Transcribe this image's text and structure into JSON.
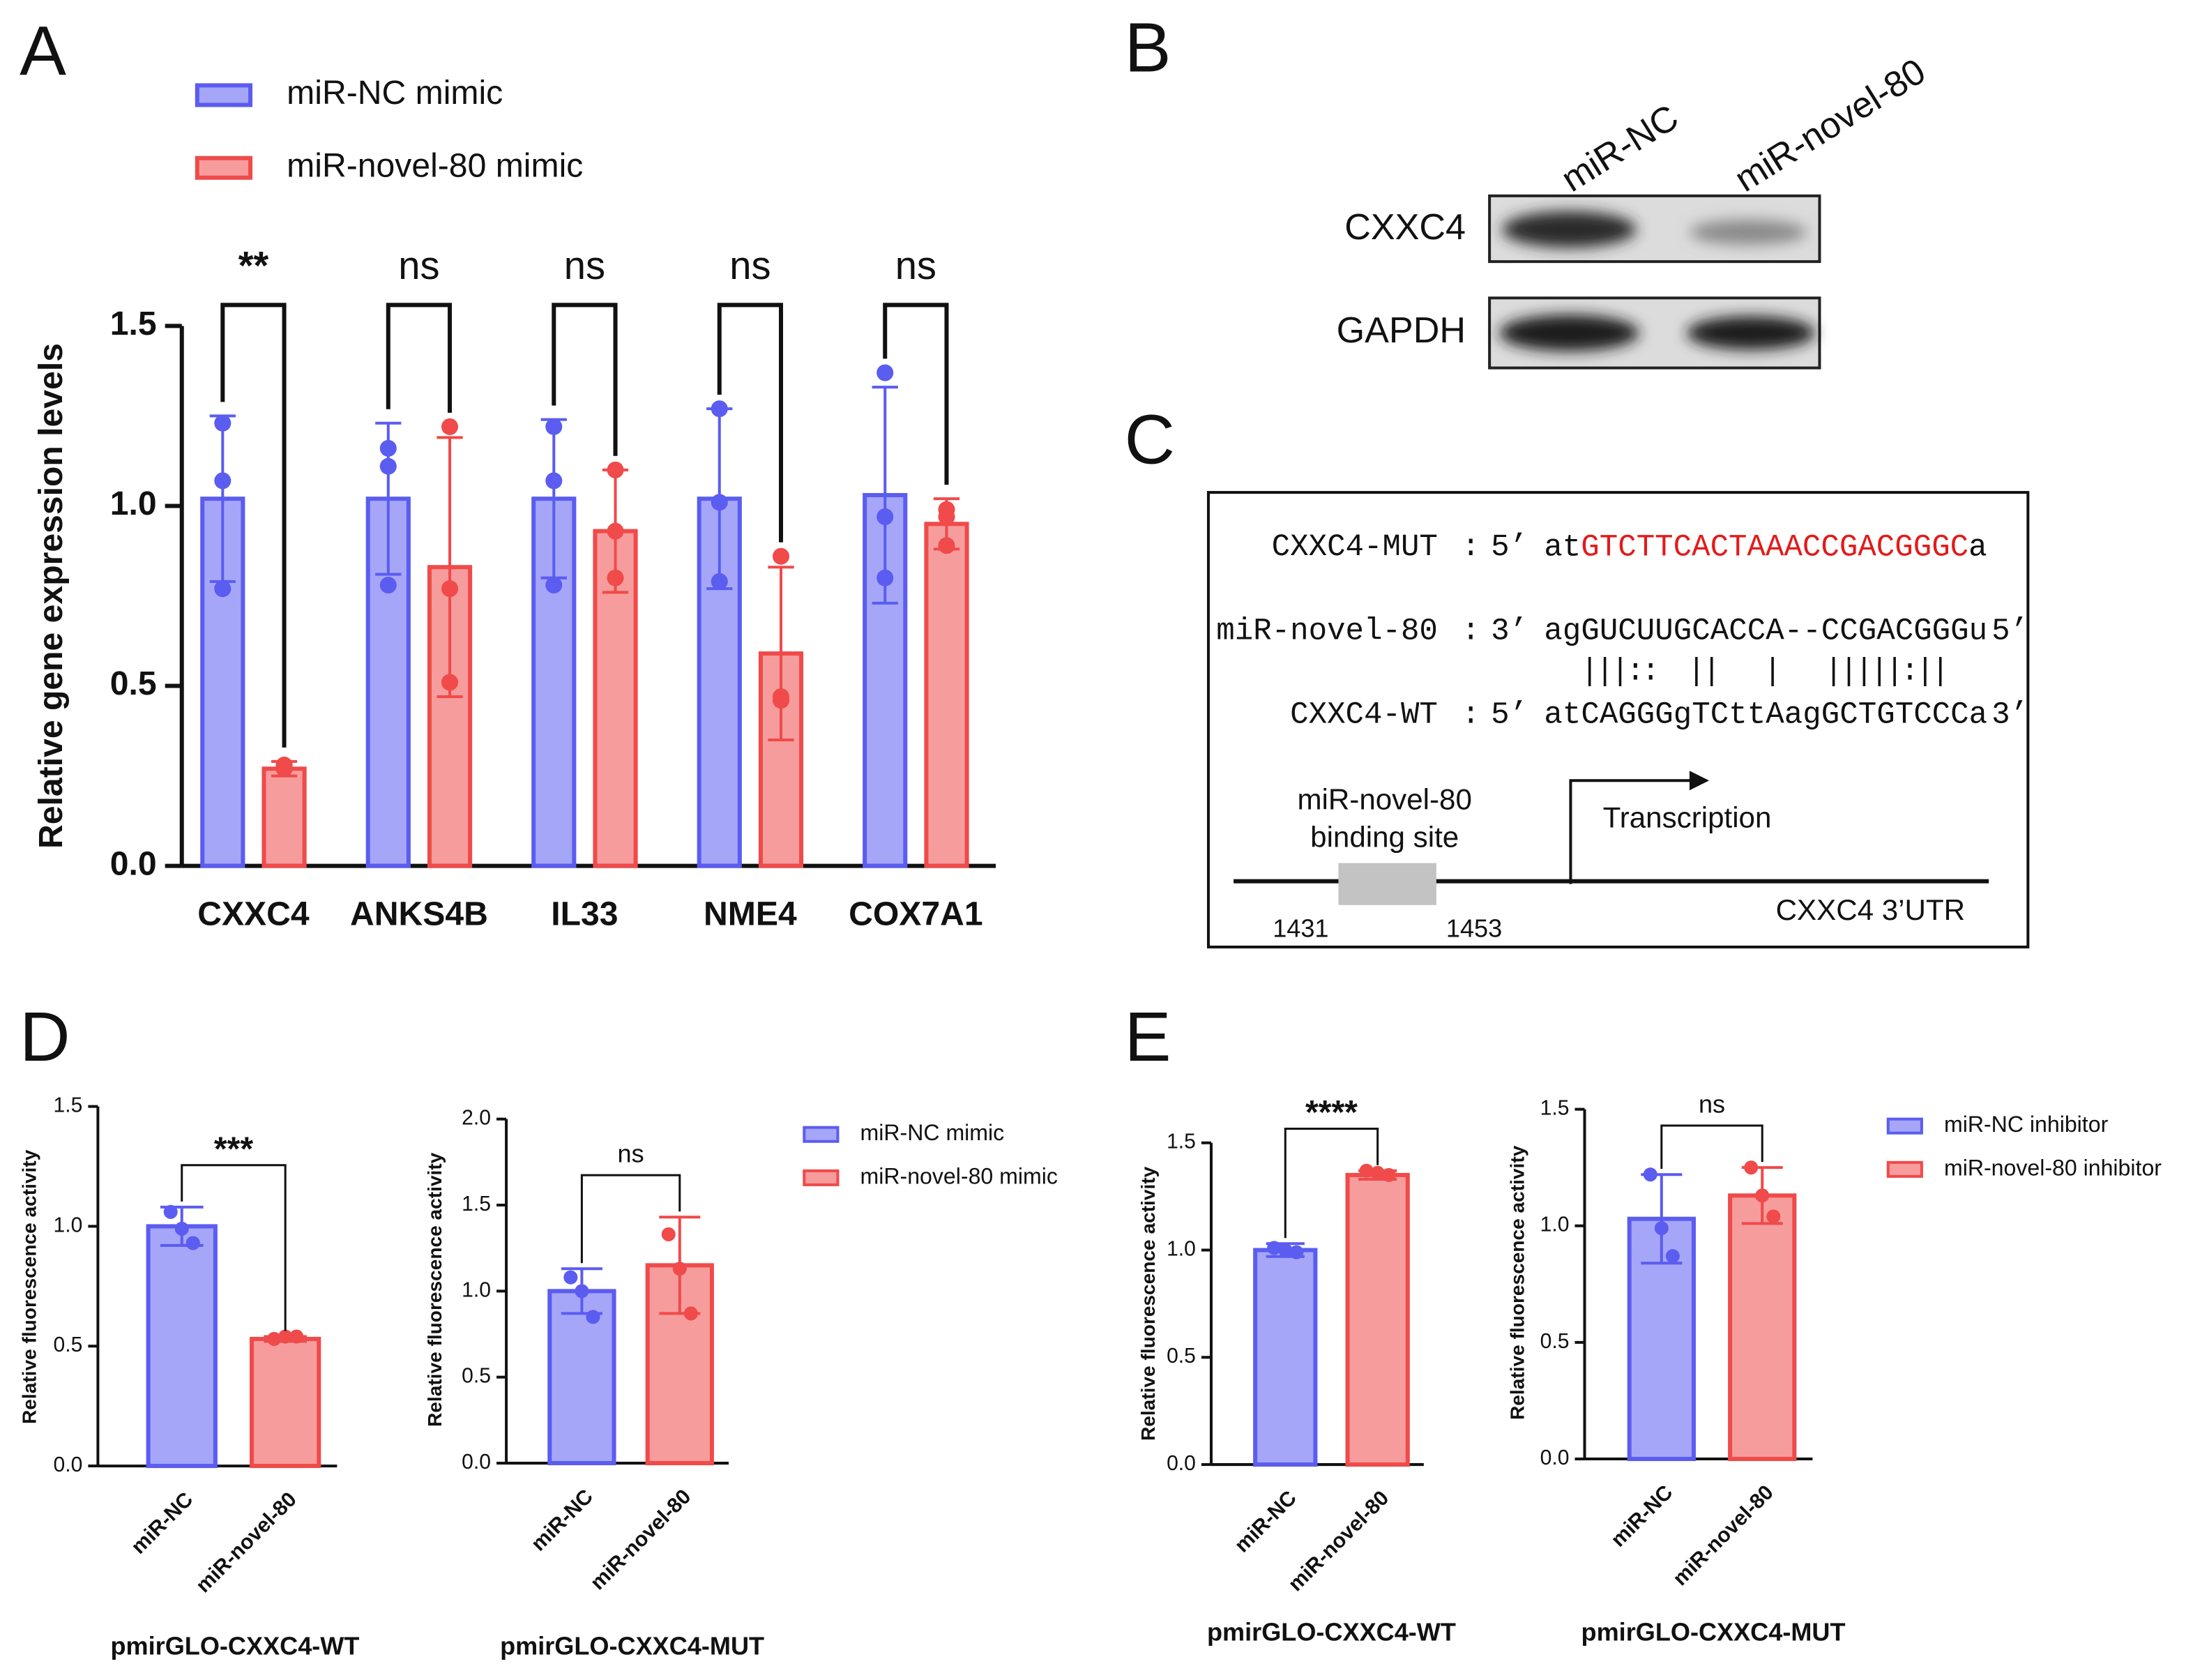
{
  "chart_data": [
    {
      "type": "bar",
      "panel": "A",
      "ylabel": "Relative gene expression levels",
      "categories": [
        "CXXC4",
        "ANKS4B",
        "IL33",
        "NME4",
        "COX7A1"
      ],
      "series": [
        {
          "name": "miR-NC mimic",
          "color": "#5b5cf0",
          "values": [
            1.02,
            1.02,
            1.02,
            1.02,
            1.03
          ],
          "errors": [
            0.23,
            0.21,
            0.22,
            0.25,
            0.3
          ],
          "points": [
            [
              1.23,
              1.07,
              0.77
            ],
            [
              1.16,
              1.11,
              0.78
            ],
            [
              1.22,
              1.07,
              0.78
            ],
            [
              1.27,
              1.01,
              0.79
            ],
            [
              1.37,
              0.97,
              0.8
            ]
          ]
        },
        {
          "name": "miR-novel-80 mimic",
          "color": "#f04a4a",
          "values": [
            0.27,
            0.83,
            0.93,
            0.59,
            0.95
          ],
          "errors": [
            0.02,
            0.36,
            0.17,
            0.24,
            0.07
          ],
          "points": [
            [
              0.28,
              0.28,
              0.27
            ],
            [
              1.22,
              0.77,
              0.51
            ],
            [
              1.1,
              0.93,
              0.8
            ],
            [
              0.86,
              0.47,
              0.46
            ],
            [
              0.99,
              0.97,
              0.89
            ]
          ]
        }
      ],
      "annotations": [
        "**",
        "ns",
        "ns",
        "ns",
        "ns"
      ],
      "ylim": [
        0,
        1.5
      ],
      "yticks": [
        {
          "value": 0,
          "label": "0.0"
        },
        0.5,
        {
          "value": 1,
          "label": "1.0"
        },
        1.5
      ]
    },
    {
      "type": "bar",
      "panel": "D",
      "ylabel": "Relative fluorescence activity",
      "xlabel": "pmirGLO-CXXC4-WT",
      "categories": [
        "miR-NC",
        "miR-novel-80"
      ],
      "values": [
        1.0,
        0.53
      ],
      "errors": [
        0.08,
        0.01
      ],
      "points": [
        [
          1.06,
          0.99,
          0.93
        ],
        [
          0.53,
          0.54,
          0.54
        ]
      ],
      "colors": [
        "#5b5cf0",
        "#f04a4a"
      ],
      "annotation": "***",
      "ylim": [
        0,
        1.5
      ],
      "yticks": [
        {
          "value": 0,
          "label": "0.0"
        },
        0.5,
        {
          "value": 1,
          "label": "1.0"
        },
        1.5
      ]
    },
    {
      "type": "bar",
      "ylabel": "Relative fluorescence activity",
      "xlabel": "pmirGLO-CXXC4-MUT",
      "categories": [
        "miR-NC",
        "miR-novel-80"
      ],
      "values": [
        1.0,
        1.15
      ],
      "errors": [
        0.13,
        0.28
      ],
      "points": [
        [
          1.08,
          1.0,
          0.85
        ],
        [
          1.33,
          1.13,
          0.87
        ]
      ],
      "colors": [
        "#5b5cf0",
        "#f04a4a"
      ],
      "annotation": "ns",
      "legend": [
        "miR-NC mimic",
        "miR-novel-80 mimic"
      ],
      "ylim": [
        0,
        2
      ],
      "yticks": [
        {
          "value": 0,
          "label": "0.0"
        },
        0.5,
        {
          "value": 1,
          "label": "1.0"
        },
        1.5,
        {
          "value": 2,
          "label": "2.0"
        }
      ]
    },
    {
      "type": "bar",
      "panel": "E",
      "ylabel": "Relative fluorescence activity",
      "xlabel": "pmirGLO-CXXC4-WT",
      "categories": [
        "miR-NC",
        "miR-novel-80"
      ],
      "values": [
        1.0,
        1.35
      ],
      "errors": [
        0.03,
        0.02
      ],
      "points": [
        [
          1.01,
          1.0,
          0.99
        ],
        [
          1.37,
          1.36,
          1.35
        ]
      ],
      "colors": [
        "#5b5cf0",
        "#f04a4a"
      ],
      "annotation": "****",
      "ylim": [
        0,
        1.5
      ],
      "yticks": [
        {
          "value": 0,
          "label": "0.0"
        },
        0.5,
        {
          "value": 1,
          "label": "1.0"
        },
        1.5
      ]
    },
    {
      "type": "bar",
      "ylabel": "Relative fluorescence activity",
      "xlabel": "pmirGLO-CXXC4-MUT",
      "categories": [
        "miR-NC",
        "miR-novel-80"
      ],
      "values": [
        1.03,
        1.13
      ],
      "errors": [
        0.19,
        0.12
      ],
      "points": [
        [
          1.22,
          0.99,
          0.87
        ],
        [
          1.25,
          1.13,
          1.04
        ]
      ],
      "colors": [
        "#5b5cf0",
        "#f04a4a"
      ],
      "annotation": "ns",
      "legend": [
        "miR-NC inhibitor",
        "miR-novel-80 inhibitor"
      ],
      "ylim": [
        0,
        1.5
      ],
      "yticks": [
        {
          "value": 0,
          "label": "0.0"
        },
        0.5,
        {
          "value": 1,
          "label": "1.0"
        },
        1.5
      ]
    }
  ],
  "blot": {
    "panel": "B",
    "lanes": [
      "miR-NC",
      "miR-novel-80"
    ],
    "proteins": [
      "CXXC4",
      "GAPDH"
    ]
  },
  "binding_diagram": {
    "panel": "C",
    "separator": ":",
    "mut": {
      "label": "CXXC4-MUT",
      "prime": "5’",
      "pre": "at",
      "site": "GTCTTCACTAAACCGACGGGC",
      "post": "a"
    },
    "mirna": {
      "label": "miR-novel-80",
      "prime": "3’",
      "seq": "agGUCUUGCACCA--CCGACGGGu",
      "end": "5’"
    },
    "pairing": "|||::  ||   |   |||||:||",
    "wt": {
      "label": "CXXC4-WT",
      "prime": "5’",
      "seq": "atCAGGGgTCttAagGCTGTCCCa",
      "end": "3’"
    },
    "site_label": [
      "miR-novel-80",
      "binding site"
    ],
    "transcription": "Transcription",
    "positions": [
      "1431",
      "1453"
    ],
    "utr": "CXXC4 3’UTR"
  }
}
